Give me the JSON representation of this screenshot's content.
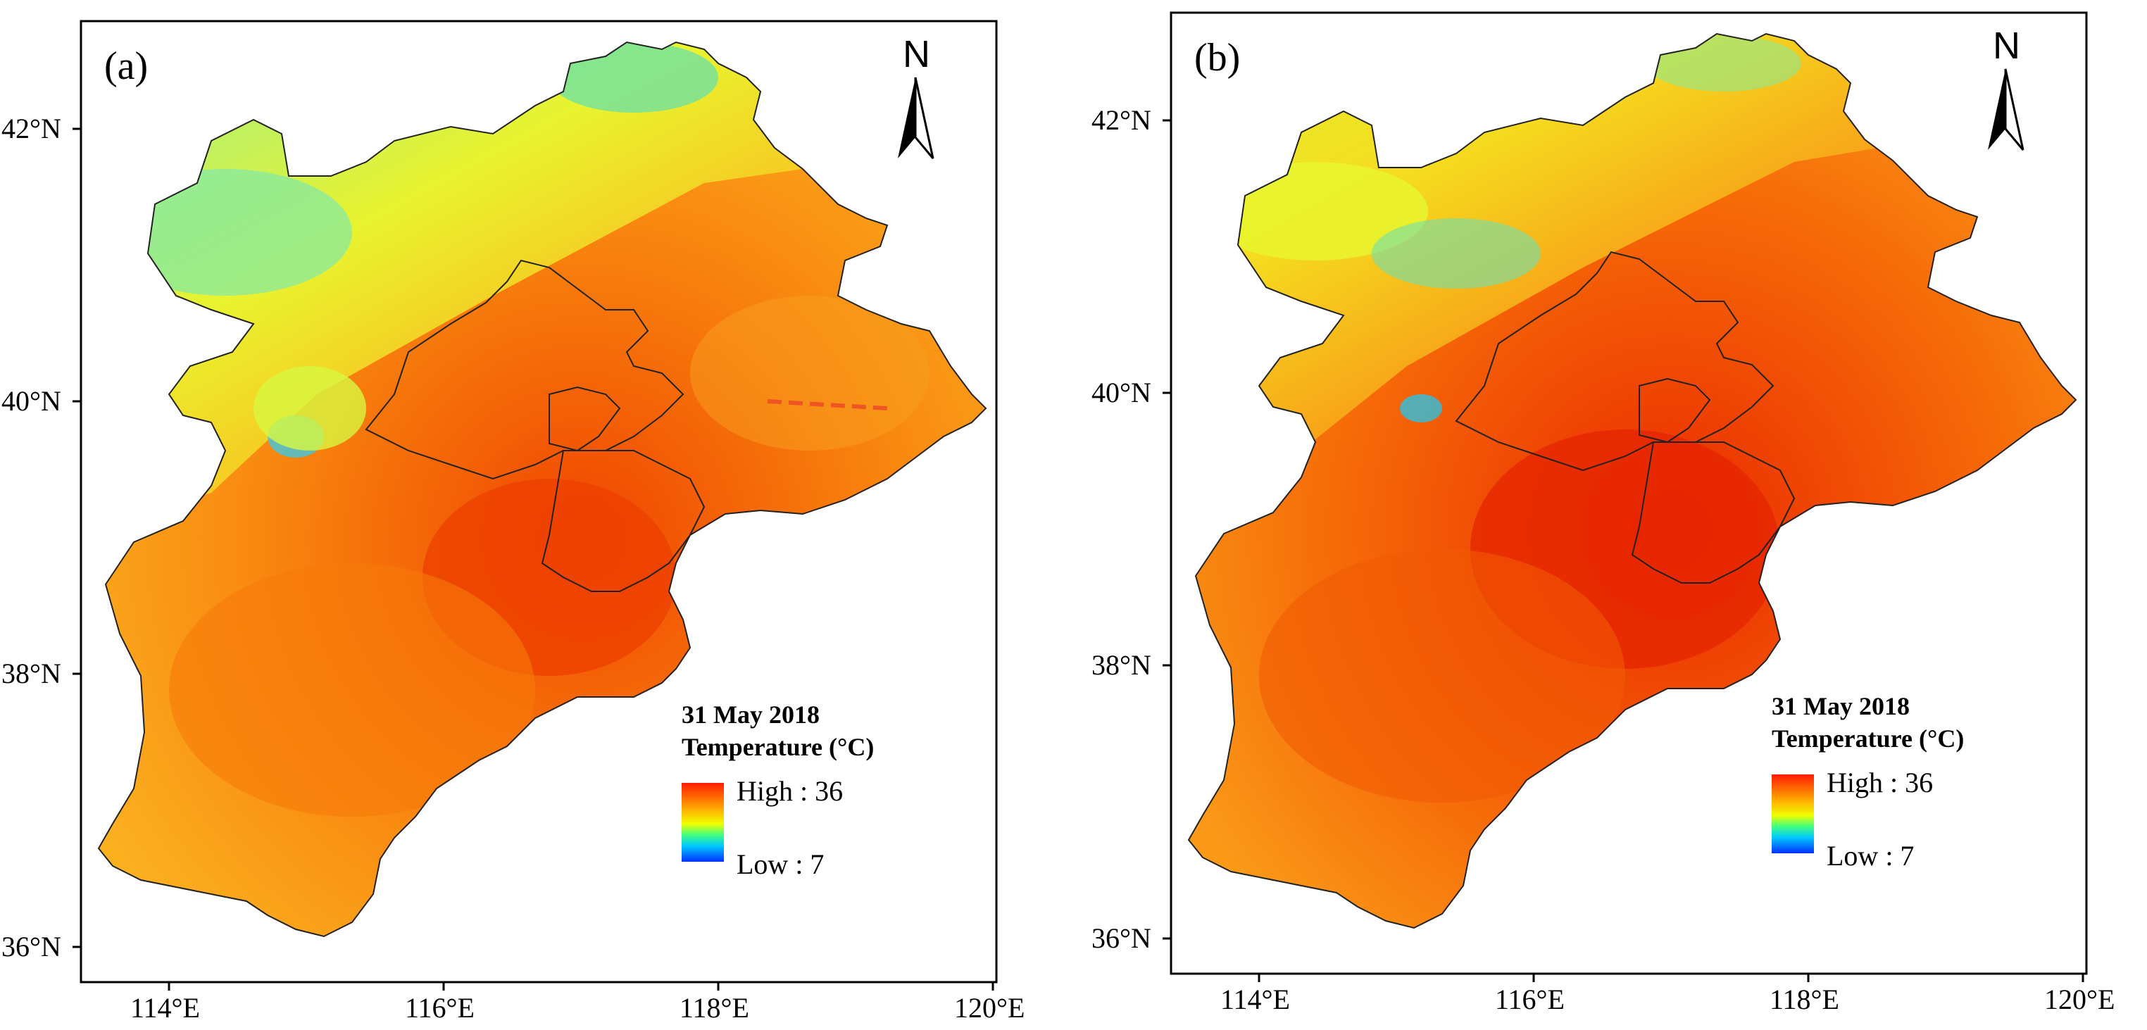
{
  "figure": {
    "panels": [
      {
        "label": "(a)",
        "north": "N",
        "legend": {
          "date": "31 May 2018",
          "title": "Temperature (°C)",
          "high": "High : 36",
          "low": "Low : 7"
        },
        "lat_labels": [
          "42°N",
          "40°N",
          "38°N",
          "36°N"
        ],
        "lon_labels": [
          "114°E",
          "116°E",
          "118°E",
          "120°E"
        ]
      },
      {
        "label": "(b)",
        "north": "N",
        "legend": {
          "date": "31 May 2018",
          "title": "Temperature (°C)",
          "high": "High : 36",
          "low": "Low : 7"
        },
        "lat_labels": [
          "42°N",
          "40°N",
          "38°N",
          "36°N"
        ],
        "lon_labels": [
          "114°E",
          "116°E",
          "118°E",
          "120°E"
        ]
      }
    ],
    "colors": {
      "high": "#ff1a00",
      "mid_high": "#ff8c00",
      "mid": "#ffd000",
      "mid_low": "#e8ff00",
      "low": "#0030ff",
      "cool": "#40e0a0"
    }
  }
}
